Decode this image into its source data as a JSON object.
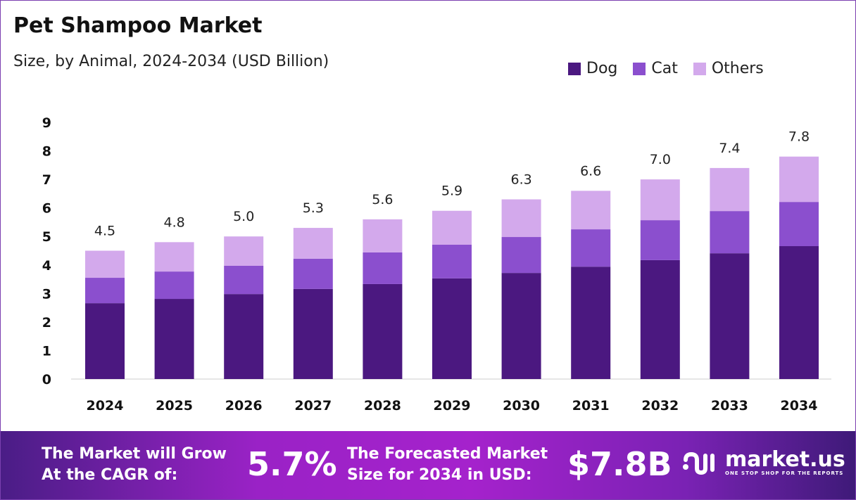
{
  "chart_data": {
    "type": "bar",
    "stacked": true,
    "title": "Pet Shampoo Market",
    "subtitle": "Size, by Animal, 2024-2034 (USD Billion)",
    "categories": [
      "2024",
      "2025",
      "2026",
      "2027",
      "2028",
      "2029",
      "2030",
      "2031",
      "2032",
      "2033",
      "2034"
    ],
    "series": [
      {
        "name": "Dog",
        "color": "#4b1880",
        "values": [
          2.66,
          2.81,
          2.98,
          3.16,
          3.33,
          3.53,
          3.72,
          3.94,
          4.17,
          4.41,
          4.66
        ]
      },
      {
        "name": "Cat",
        "color": "#8b4fce",
        "values": [
          0.89,
          0.96,
          0.99,
          1.06,
          1.11,
          1.18,
          1.26,
          1.31,
          1.4,
          1.48,
          1.55
        ]
      },
      {
        "name": "Others",
        "color": "#d3a9ec",
        "values": [
          0.95,
          1.03,
          1.03,
          1.08,
          1.16,
          1.19,
          1.32,
          1.35,
          1.43,
          1.51,
          1.59
        ]
      }
    ],
    "totals": [
      "4.5",
      "4.8",
      "5.0",
      "5.3",
      "5.6",
      "5.9",
      "6.3",
      "6.6",
      "7.0",
      "7.4",
      "7.8"
    ],
    "ylim": [
      0,
      9
    ],
    "yticks": [
      "0",
      "1",
      "2",
      "3",
      "4",
      "5",
      "6",
      "7",
      "8",
      "9"
    ],
    "grid": false,
    "legend": "top-right"
  },
  "footer": {
    "cagr_label_1": "The Market will Grow",
    "cagr_label_2": "At the CAGR of:",
    "cagr_value": "5.7%",
    "forecast_label_1": "The Forecasted Market",
    "forecast_label_2": "Size for 2034 in USD:",
    "forecast_value": "$7.8B",
    "logo_name": "market.us",
    "logo_tagline": "ONE STOP SHOP FOR THE REPORTS"
  }
}
